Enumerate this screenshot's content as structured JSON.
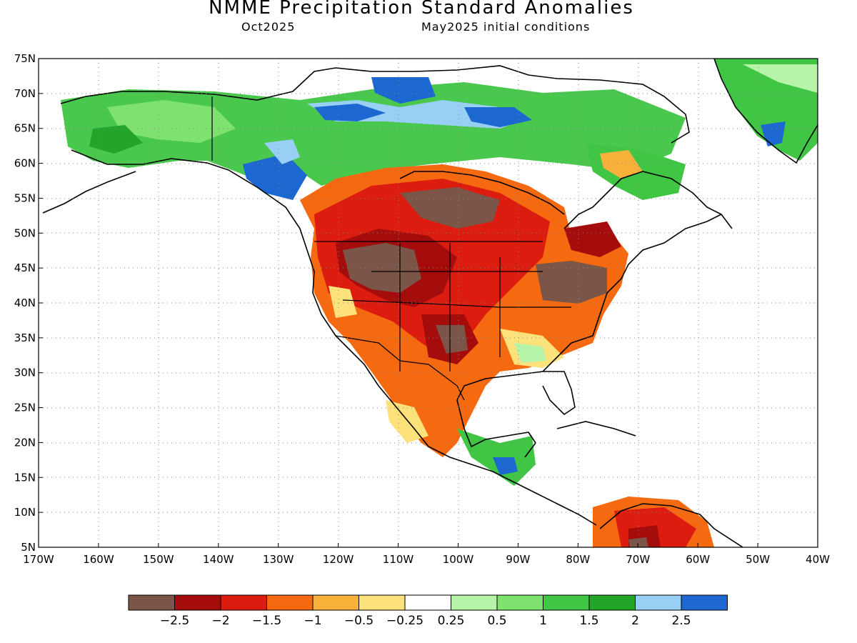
{
  "header": {
    "title": "NMME Precipitation Standard Anomalies",
    "target": "Oct2025",
    "initial": "May2025 initial conditions"
  },
  "map": {
    "lon_range": [
      -170,
      -40
    ],
    "lat_range": [
      5,
      75
    ],
    "lat_labels": [
      "5N",
      "10N",
      "15N",
      "20N",
      "25N",
      "30N",
      "35N",
      "40N",
      "45N",
      "50N",
      "55N",
      "60N",
      "65N",
      "70N",
      "75N"
    ],
    "lon_labels": [
      "170W",
      "160W",
      "150W",
      "140W",
      "130W",
      "120W",
      "110W",
      "100W",
      "90W",
      "80W",
      "70W",
      "60W",
      "50W",
      "40W"
    ],
    "gridlines": "dotted"
  },
  "colorbar": {
    "colors": [
      "#7a5548",
      "#a50d0d",
      "#dd1c10",
      "#f56a10",
      "#f9b13c",
      "#fde17a",
      "#ffffff",
      "#b7f3a8",
      "#7ee26e",
      "#40c545",
      "#22a529",
      "#97cff5",
      "#1c68d0"
    ],
    "labels": [
      "-2.5",
      "-2",
      "-1.5",
      "-1",
      "-0.5",
      "-0.25",
      "0.25",
      "0.5",
      "1",
      "1.5",
      "2",
      "2.5"
    ]
  }
}
